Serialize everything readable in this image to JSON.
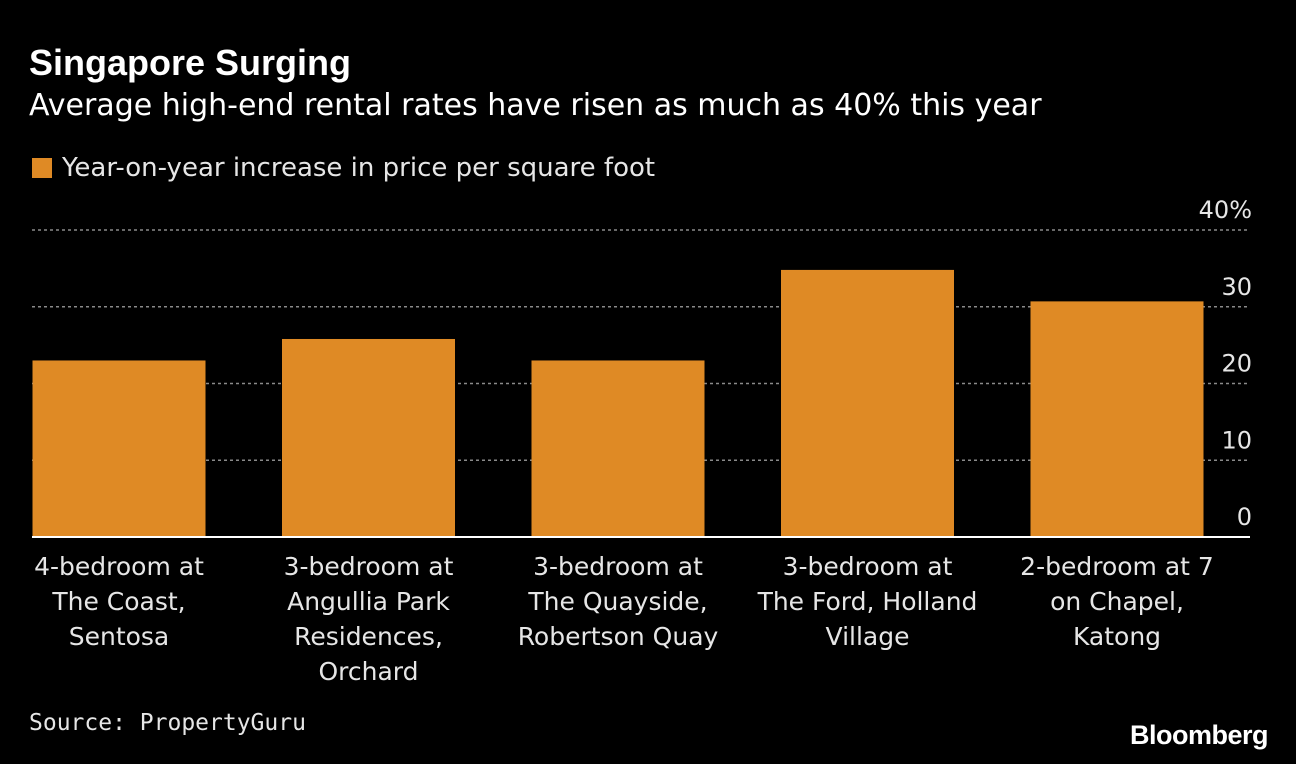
{
  "header": {
    "title": "Singapore Surging",
    "subtitle": "Average high-end rental rates have risen as much as 40% this year"
  },
  "legend": {
    "label": "Year-on-year increase in price per square foot"
  },
  "footer": {
    "source": "Source: PropertyGuru",
    "brand": "Bloomberg"
  },
  "colors": {
    "bar": "#df8a25",
    "gridline": "#8a8a8a",
    "baseline": "#ffffff",
    "tick_text": "#e6e6e6"
  },
  "chart_data": {
    "type": "bar",
    "title": "Singapore Surging",
    "subtitle": "Average high-end rental rates have risen as much as 40% this year",
    "xlabel": "",
    "ylabel": "",
    "ylim": [
      0,
      40
    ],
    "grid": true,
    "legend_position": "top-left",
    "y_ticks": [
      {
        "value": 0,
        "label": "0"
      },
      {
        "value": 10,
        "label": "10"
      },
      {
        "value": 20,
        "label": "20"
      },
      {
        "value": 30,
        "label": "30"
      },
      {
        "value": 40,
        "label": "40%"
      }
    ],
    "categories": [
      "4-bedroom at The Coast, Sentosa",
      "3-bedroom at Angullia Park Residences, Orchard",
      "3-bedroom at The Quayside, Robertson Quay",
      "3-bedroom at The Ford, Holland Village",
      "2-bedroom at 7 on Chapel, Katong"
    ],
    "category_lines": [
      [
        "4-bedroom at",
        "The Coast,",
        "Sentosa"
      ],
      [
        "3-bedroom at",
        "Angullia Park",
        "Residences,",
        "Orchard"
      ],
      [
        "3-bedroom at",
        "The Quayside,",
        "Robertson Quay"
      ],
      [
        "3-bedroom at",
        "The Ford, Holland",
        "Village"
      ],
      [
        "2-bedroom at 7",
        "on Chapel,",
        "Katong"
      ]
    ],
    "series": [
      {
        "name": "Year-on-year increase in price per square foot",
        "values": [
          23,
          25.8,
          23,
          34.8,
          30.7
        ]
      }
    ]
  }
}
